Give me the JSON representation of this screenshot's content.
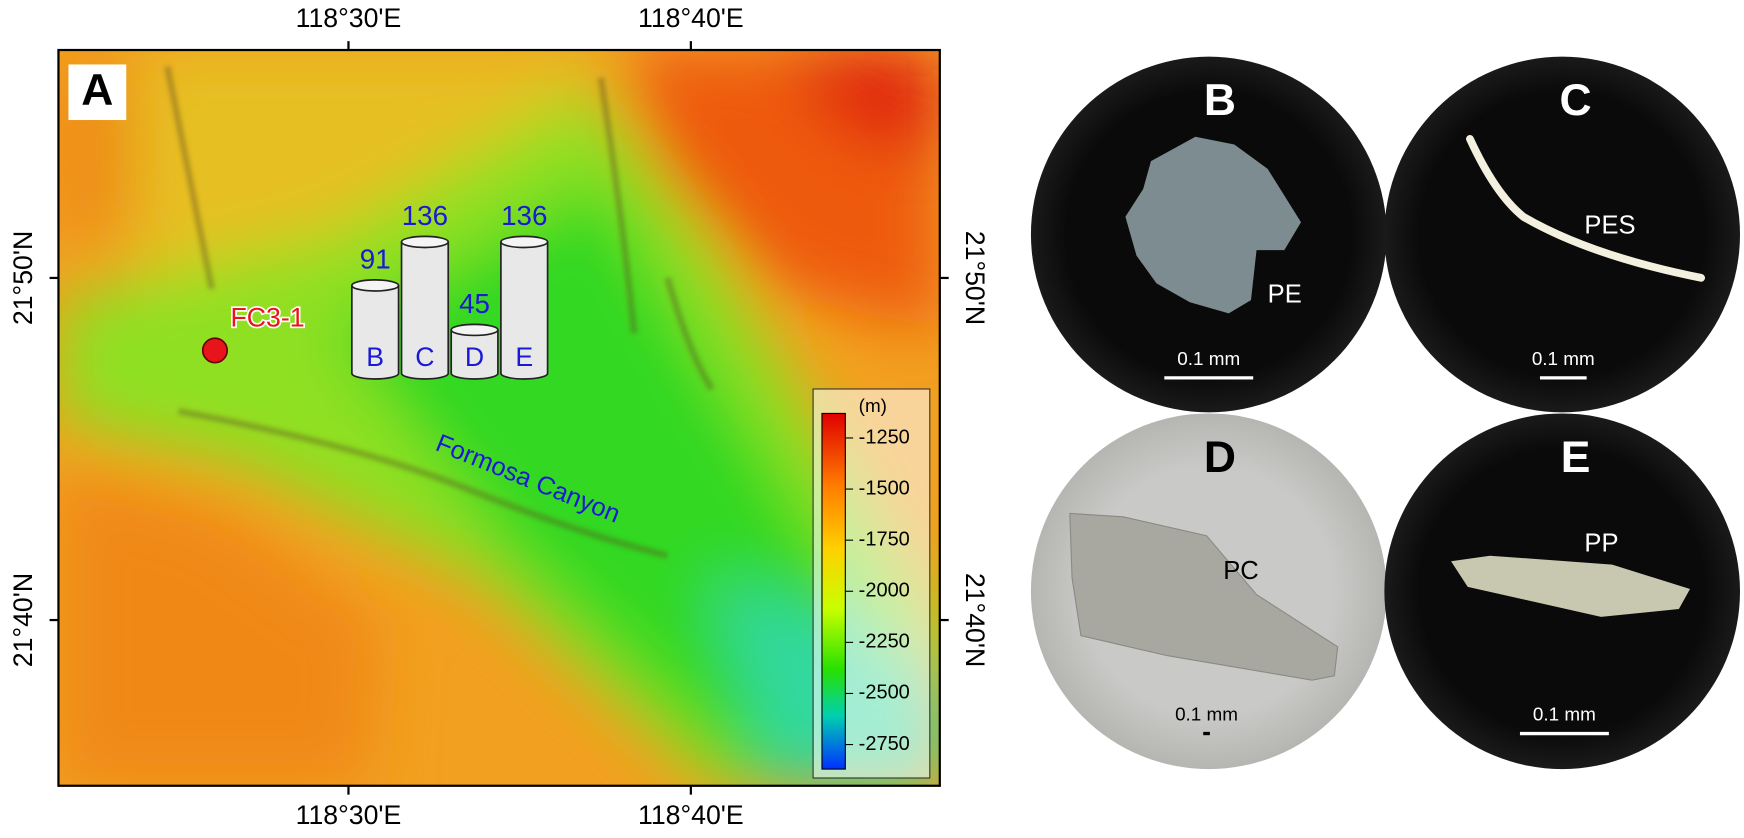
{
  "map": {
    "panel_label": "A",
    "xlim": [
      118.3588,
      118.7879
    ],
    "ylim": [
      21.586,
      21.9443
    ],
    "xticks": [
      {
        "value": 118.5,
        "label": "118°30'E"
      },
      {
        "value": 118.6667,
        "label": "118°40'E"
      }
    ],
    "yticks": [
      {
        "value": 21.8333,
        "label": "21°50'N"
      },
      {
        "value": 21.6667,
        "label": "21°40'N"
      }
    ],
    "site": {
      "label": "FC3-1",
      "lon": 118.435,
      "lat": 21.798,
      "color": "#e8141b"
    },
    "canyon_label": "Formosa Canyon",
    "counts": {
      "categories": [
        "B",
        "C",
        "D",
        "E"
      ],
      "values": [
        91,
        136,
        45,
        136
      ],
      "color": "#1a1ad6"
    },
    "colorbar": {
      "unit": "(m)",
      "lim": [
        -2870,
        -1130
      ],
      "ticks": [
        -1250,
        -1500,
        -1750,
        -2000,
        -2250,
        -2500,
        -2750
      ]
    }
  },
  "photos": [
    {
      "panel_label": "B",
      "polymer": "PE",
      "scale": "0.1 mm"
    },
    {
      "panel_label": "C",
      "polymer": "PES",
      "scale": "0.1 mm"
    },
    {
      "panel_label": "D",
      "polymer": "PC",
      "scale": "0.1 mm"
    },
    {
      "panel_label": "E",
      "polymer": "PP",
      "scale": "0.1 mm"
    }
  ]
}
